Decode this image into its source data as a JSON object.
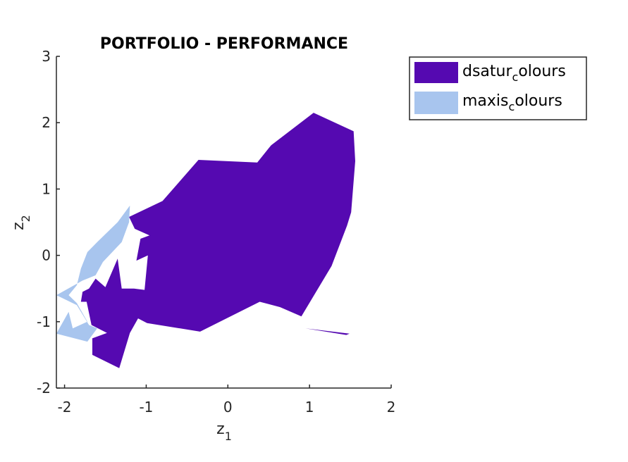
{
  "chart_data": {
    "type": "area",
    "title": "PORTFOLIO - PERFORMANCE",
    "xlabel": {
      "base": "z",
      "sub": "1"
    },
    "ylabel": {
      "base": "z",
      "sub": "2"
    },
    "xlim": [
      -2.1,
      2
    ],
    "ylim": [
      -2,
      3
    ],
    "xticks": [
      -2,
      -1,
      0,
      1,
      2
    ],
    "yticks": [
      -2,
      -1,
      0,
      1,
      2,
      3
    ],
    "grid": false,
    "legend_position": "outside-top-right",
    "series": [
      {
        "name": {
          "base": "dsatur",
          "sub": "c",
          "rest": "olours"
        },
        "color": "#5509B1",
        "polygons": [
          [
            [
              -1.21,
              0.58
            ],
            [
              -0.8,
              0.82
            ],
            [
              -0.36,
              1.44
            ],
            [
              0.36,
              1.4
            ],
            [
              0.53,
              1.66
            ],
            [
              1.05,
              2.15
            ],
            [
              1.54,
              1.87
            ],
            [
              1.56,
              1.42
            ],
            [
              1.51,
              0.65
            ],
            [
              1.46,
              0.45
            ],
            [
              1.27,
              -0.16
            ],
            [
              0.9,
              -0.92
            ],
            [
              0.64,
              -0.78
            ],
            [
              0.39,
              -0.7
            ],
            [
              -0.34,
              -1.15
            ],
            [
              -0.99,
              -1.02
            ],
            [
              -1.1,
              -0.95
            ],
            [
              -1.2,
              -1.17
            ],
            [
              -1.33,
              -1.7
            ],
            [
              -1.66,
              -1.5
            ],
            [
              -1.66,
              -1.25
            ],
            [
              -1.48,
              -1.17
            ],
            [
              -1.67,
              -1.05
            ],
            [
              -1.73,
              -0.7
            ],
            [
              -1.8,
              -0.7
            ],
            [
              -1.78,
              -0.55
            ],
            [
              -1.7,
              -0.5
            ],
            [
              -1.62,
              -0.35
            ],
            [
              -1.5,
              -0.48
            ],
            [
              -1.35,
              -0.05
            ],
            [
              -1.3,
              -0.5
            ],
            [
              -1.17,
              -0.5
            ],
            [
              -1.15,
              -0.5
            ],
            [
              -1.02,
              -0.52
            ],
            [
              -0.98,
              0.0
            ],
            [
              -1.12,
              -0.08
            ],
            [
              -1.07,
              0.25
            ],
            [
              -0.96,
              0.3
            ],
            [
              -1.14,
              0.4
            ],
            [
              -1.21,
              0.58
            ]
          ],
          [
            [
              0.95,
              -1.1
            ],
            [
              1.49,
              -1.18
            ],
            [
              1.45,
              -1.2
            ],
            [
              0.95,
              -1.1
            ]
          ]
        ]
      },
      {
        "name": {
          "base": "maxis",
          "sub": "c",
          "rest": "olours"
        },
        "color": "#A8C5EE",
        "polygons": [
          [
            [
              -2.1,
              -0.6
            ],
            [
              -1.78,
              -0.38
            ],
            [
              -1.62,
              -0.3
            ],
            [
              -1.53,
              -0.1
            ],
            [
              -1.3,
              0.2
            ],
            [
              -1.21,
              0.5
            ],
            [
              -1.2,
              0.75
            ],
            [
              -1.35,
              0.5
            ],
            [
              -1.6,
              0.2
            ],
            [
              -1.72,
              0.05
            ],
            [
              -1.8,
              -0.2
            ],
            [
              -1.85,
              -0.45
            ],
            [
              -1.95,
              -0.6
            ],
            [
              -1.85,
              -0.72
            ],
            [
              -1.72,
              -1.0
            ],
            [
              -1.9,
              -1.1
            ],
            [
              -1.95,
              -0.85
            ],
            [
              -2.1,
              -1.18
            ],
            [
              -1.72,
              -1.3
            ],
            [
              -1.6,
              -1.1
            ],
            [
              -1.7,
              -1.05
            ],
            [
              -1.85,
              -0.75
            ],
            [
              -2.1,
              -0.6
            ]
          ]
        ]
      }
    ]
  }
}
